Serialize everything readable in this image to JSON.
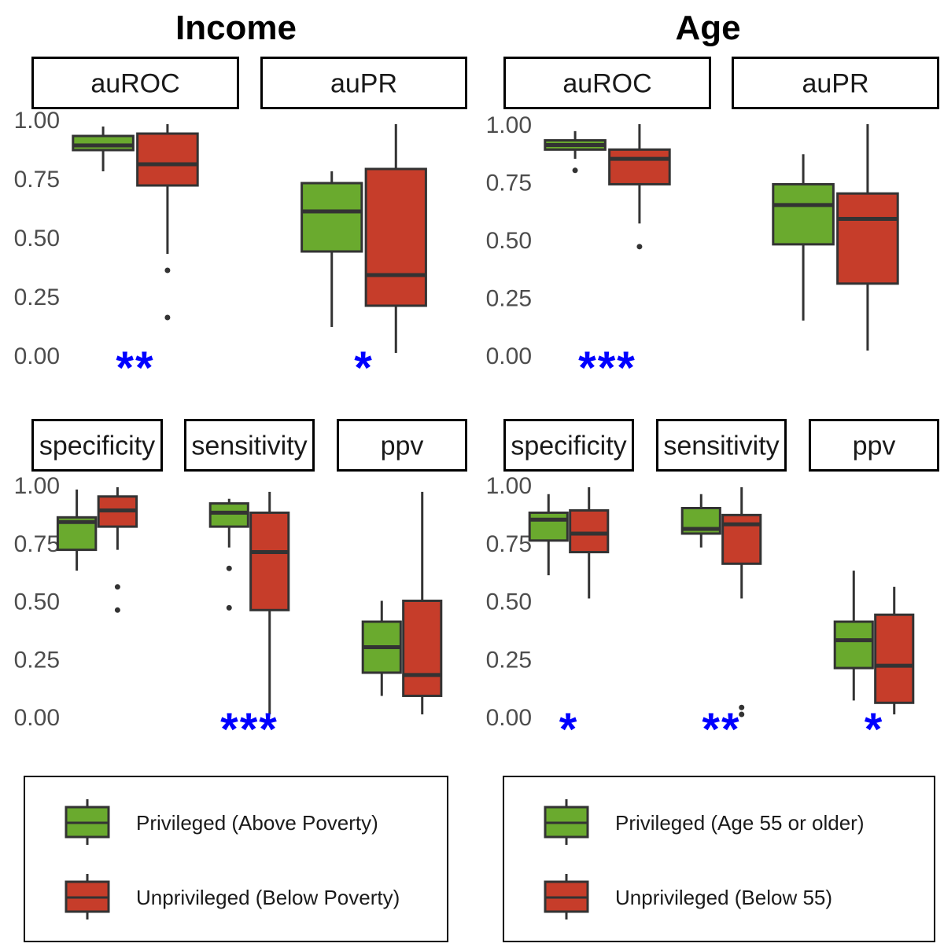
{
  "colors": {
    "privileged": "#6aaa2e",
    "unprivileged": "#c63d2a",
    "outline": "#333333",
    "significance": "#0000ff"
  },
  "chart_data": [
    {
      "type": "boxplot",
      "title": "Income",
      "legend": {
        "position": "bottom",
        "entries": [
          "Privileged (Above Poverty)",
          "Unprivileged (Below Poverty)"
        ]
      },
      "ylim": [
        0,
        1
      ],
      "y_ticks": [
        "0.00",
        "0.25",
        "0.50",
        "0.75",
        "1.00"
      ],
      "panels": [
        {
          "metric": "auROC",
          "significance": "**",
          "boxes": [
            {
              "group": "Privileged (Above Poverty)",
              "min": 0.78,
              "q1": 0.87,
              "median": 0.89,
              "q3": 0.93,
              "max": 0.97,
              "outliers": []
            },
            {
              "group": "Unprivileged (Below Poverty)",
              "min": 0.43,
              "q1": 0.72,
              "median": 0.81,
              "q3": 0.94,
              "max": 0.98,
              "outliers": [
                0.36,
                0.16
              ]
            }
          ]
        },
        {
          "metric": "auPR",
          "significance": "*",
          "boxes": [
            {
              "group": "Privileged (Above Poverty)",
              "min": 0.12,
              "q1": 0.44,
              "median": 0.61,
              "q3": 0.73,
              "max": 0.78,
              "outliers": []
            },
            {
              "group": "Unprivileged (Below Poverty)",
              "min": 0.01,
              "q1": 0.21,
              "median": 0.34,
              "q3": 0.79,
              "max": 0.98,
              "outliers": []
            }
          ]
        },
        {
          "metric": "specificity",
          "significance": "",
          "boxes": [
            {
              "group": "Privileged (Above Poverty)",
              "min": 0.63,
              "q1": 0.72,
              "median": 0.84,
              "q3": 0.86,
              "max": 0.98,
              "outliers": []
            },
            {
              "group": "Unprivileged (Below Poverty)",
              "min": 0.72,
              "q1": 0.82,
              "median": 0.89,
              "q3": 0.95,
              "max": 0.99,
              "outliers": [
                0.56,
                0.46
              ]
            }
          ]
        },
        {
          "metric": "sensitivity",
          "significance": "***",
          "boxes": [
            {
              "group": "Privileged (Above Poverty)",
              "min": 0.73,
              "q1": 0.82,
              "median": 0.88,
              "q3": 0.92,
              "max": 0.94,
              "outliers": [
                0.64,
                0.47
              ]
            },
            {
              "group": "Unprivileged (Below Poverty)",
              "min": 0.01,
              "q1": 0.46,
              "median": 0.71,
              "q3": 0.88,
              "max": 0.97,
              "outliers": []
            }
          ]
        },
        {
          "metric": "ppv",
          "significance": "",
          "boxes": [
            {
              "group": "Privileged (Above Poverty)",
              "min": 0.09,
              "q1": 0.19,
              "median": 0.3,
              "q3": 0.41,
              "max": 0.5,
              "outliers": []
            },
            {
              "group": "Unprivileged (Below Poverty)",
              "min": 0.01,
              "q1": 0.09,
              "median": 0.18,
              "q3": 0.5,
              "max": 0.97,
              "outliers": []
            }
          ]
        }
      ]
    },
    {
      "type": "boxplot",
      "title": "Age",
      "legend": {
        "position": "bottom",
        "entries": [
          "Privileged (Age 55 or older)",
          "Unprivileged (Below 55)"
        ]
      },
      "ylim": [
        0,
        1
      ],
      "y_ticks": [
        "0.00",
        "0.25",
        "0.50",
        "0.75",
        "1.00"
      ],
      "panels": [
        {
          "metric": "auROC",
          "significance": "***",
          "boxes": [
            {
              "group": "Privileged (Age 55 or older)",
              "min": 0.85,
              "q1": 0.89,
              "median": 0.91,
              "q3": 0.93,
              "max": 0.97,
              "outliers": [
                0.8
              ]
            },
            {
              "group": "Unprivileged (Below 55)",
              "min": 0.57,
              "q1": 0.74,
              "median": 0.85,
              "q3": 0.89,
              "max": 1.0,
              "outliers": [
                0.47
              ]
            }
          ]
        },
        {
          "metric": "auPR",
          "significance": "",
          "boxes": [
            {
              "group": "Privileged (Age 55 or older)",
              "min": 0.15,
              "q1": 0.48,
              "median": 0.65,
              "q3": 0.74,
              "max": 0.87,
              "outliers": []
            },
            {
              "group": "Unprivileged (Below 55)",
              "min": 0.02,
              "q1": 0.31,
              "median": 0.59,
              "q3": 0.7,
              "max": 1.0,
              "outliers": []
            }
          ]
        },
        {
          "metric": "specificity",
          "significance": "*",
          "boxes": [
            {
              "group": "Privileged (Age 55 or older)",
              "min": 0.61,
              "q1": 0.76,
              "median": 0.85,
              "q3": 0.88,
              "max": 0.96,
              "outliers": []
            },
            {
              "group": "Unprivileged (Below 55)",
              "min": 0.51,
              "q1": 0.71,
              "median": 0.79,
              "q3": 0.89,
              "max": 0.99,
              "outliers": []
            }
          ]
        },
        {
          "metric": "sensitivity",
          "significance": "**",
          "boxes": [
            {
              "group": "Privileged (Age 55 or older)",
              "min": 0.73,
              "q1": 0.79,
              "median": 0.81,
              "q3": 0.9,
              "max": 0.96,
              "outliers": []
            },
            {
              "group": "Unprivileged (Below 55)",
              "min": 0.51,
              "q1": 0.66,
              "median": 0.83,
              "q3": 0.87,
              "max": 0.99,
              "outliers": [
                0.04,
                0.01
              ]
            }
          ]
        },
        {
          "metric": "ppv",
          "significance": "*",
          "boxes": [
            {
              "group": "Privileged (Age 55 or older)",
              "min": 0.07,
              "q1": 0.21,
              "median": 0.33,
              "q3": 0.41,
              "max": 0.63,
              "outliers": []
            },
            {
              "group": "Unprivileged (Below 55)",
              "min": 0.01,
              "q1": 0.06,
              "median": 0.22,
              "q3": 0.44,
              "max": 0.56,
              "outliers": []
            }
          ]
        }
      ]
    }
  ]
}
